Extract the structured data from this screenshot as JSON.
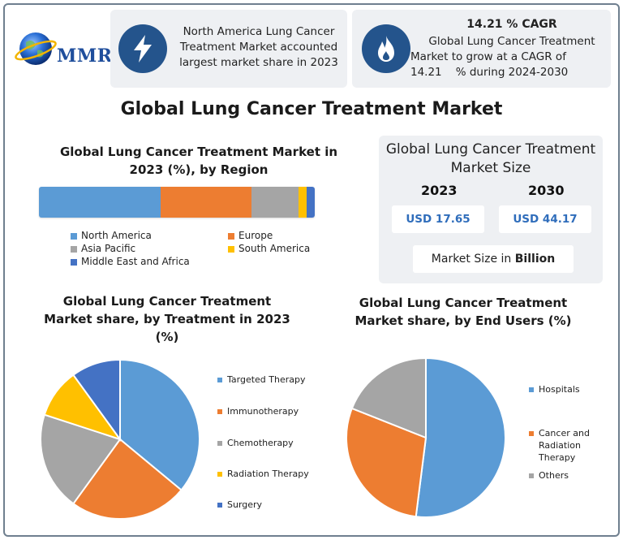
{
  "logo": {
    "text": "MMR"
  },
  "highlights": [
    {
      "icon": "lightning-icon",
      "text": "North America Lung Cancer Treatment Market accounted largest market share in 2023"
    },
    {
      "icon": "flame-icon",
      "heading": "14.21 % CAGR",
      "text_line1": "Global Lung Cancer Treatment",
      "text_line2": "Market to grow at a CAGR of",
      "text_line2b": "14.21",
      "text_line3": "% during 2024-2030"
    }
  ],
  "main_title": "Global Lung Cancer Treatment Market",
  "market_size": {
    "title_line1": "Global Lung Cancer Treatment",
    "title_line2": "Market Size",
    "year1": "2023",
    "year2": "2030",
    "value1": "USD 17.65",
    "value2": "USD 44.17",
    "unit_prefix": "Market Size in ",
    "unit_bold": "Billion"
  },
  "colors": {
    "blue": "#5b9bd5",
    "orange": "#ed7d31",
    "gray": "#a5a5a5",
    "yellow": "#ffc000",
    "dark_blue": "#4472c4",
    "navy": "#24548c"
  },
  "chart_data": [
    {
      "type": "bar",
      "stacked": true,
      "orientation": "horizontal",
      "title": "Global Lung Cancer Treatment Market in 2023 (%), by Region",
      "title_line1": "Global Lung Cancer Treatment Market in",
      "title_line2": "2023 (%), by Region",
      "series": [
        {
          "name": "North America",
          "value": 44,
          "color": "#5b9bd5"
        },
        {
          "name": "Europe",
          "value": 33,
          "color": "#ed7d31"
        },
        {
          "name": "Asia Pacific",
          "value": 17,
          "color": "#a5a5a5"
        },
        {
          "name": "South America",
          "value": 3,
          "color": "#ffc000"
        },
        {
          "name": "Middle East and Africa",
          "value": 3,
          "color": "#4472c4"
        }
      ],
      "legend": "bottom"
    },
    {
      "type": "pie",
      "title": "Global Lung Cancer Treatment Market share, by Treatment in 2023 (%)",
      "title_line1": "Global Lung Cancer Treatment",
      "title_line2": "Market share, by Treatment in 2023",
      "title_line3": "(%)",
      "slices": [
        {
          "name": "Targeted Therapy",
          "value": 36,
          "color": "#5b9bd5"
        },
        {
          "name": "Immunotherapy",
          "value": 24,
          "color": "#ed7d31"
        },
        {
          "name": "Chemotherapy",
          "value": 20,
          "color": "#a5a5a5"
        },
        {
          "name": "Radiation Therapy",
          "value": 10,
          "color": "#ffc000"
        },
        {
          "name": "Surgery",
          "value": 10,
          "color": "#4472c4"
        }
      ],
      "legend": "right"
    },
    {
      "type": "pie",
      "title": "Global Lung Cancer Treatment Market share, by End Users (%)",
      "title_line1": "Global Lung Cancer Treatment",
      "title_line2": "Market share, by End Users (%)",
      "slices": [
        {
          "name": "Hospitals",
          "value": 52,
          "color": "#5b9bd5"
        },
        {
          "name": "Cancer and Radiation Therapy",
          "value": 29,
          "color": "#ed7d31",
          "label_lines": [
            "Cancer and",
            "Radiation",
            "Therapy"
          ]
        },
        {
          "name": "Others",
          "value": 19,
          "color": "#a5a5a5"
        }
      ],
      "legend": "right"
    }
  ]
}
